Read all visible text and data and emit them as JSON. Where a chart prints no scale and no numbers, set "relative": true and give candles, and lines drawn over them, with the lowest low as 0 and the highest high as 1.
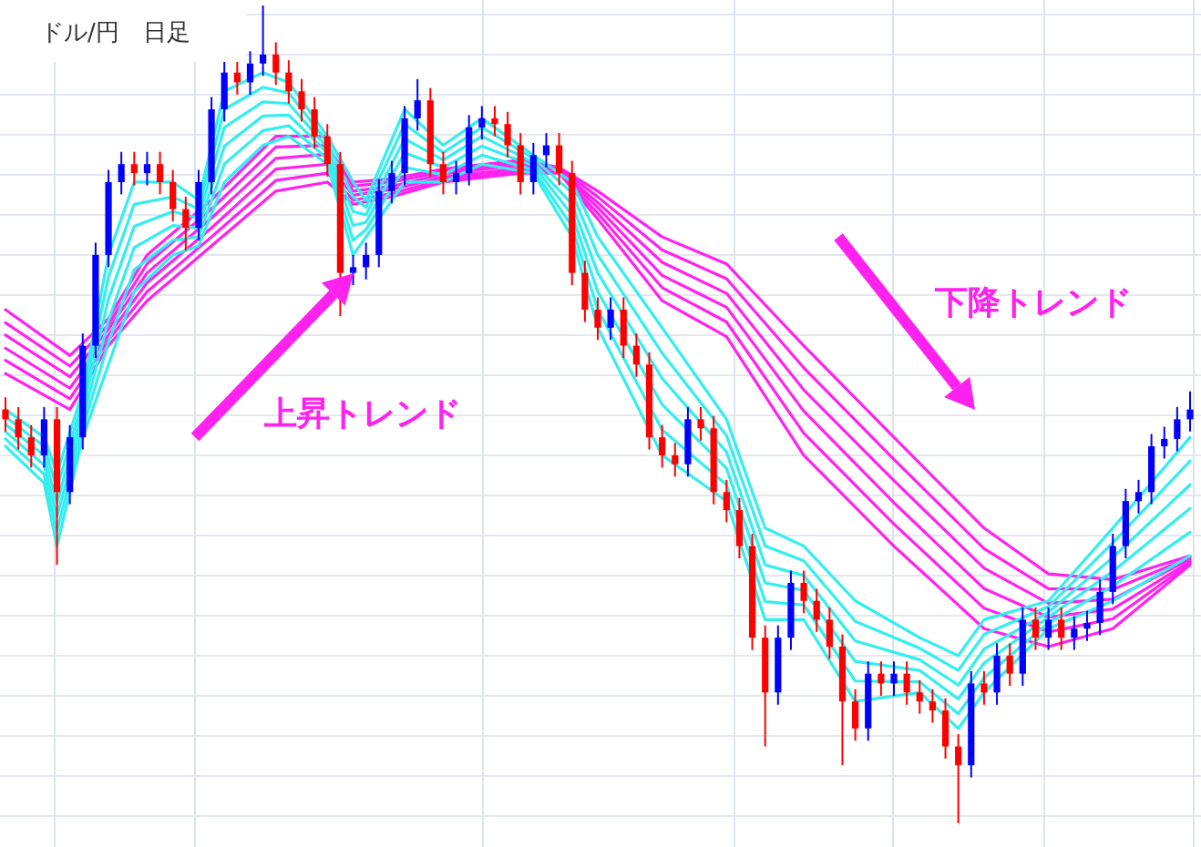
{
  "chart_data": {
    "type": "candlestick",
    "title": "ドル/円　日足",
    "relative": true,
    "grid": true,
    "annotations": [
      "上昇トレンド",
      "下降トレンド"
    ],
    "categories": [
      null,
      null,
      null,
      null,
      null,
      null,
      null,
      null,
      null,
      null,
      null,
      null,
      null,
      null,
      null,
      null,
      null,
      null,
      null,
      null,
      null,
      null,
      null,
      null,
      null,
      null,
      null,
      null,
      null,
      null,
      null,
      null,
      null,
      null,
      null,
      null,
      null,
      null,
      null,
      null,
      null,
      null,
      null,
      null,
      null,
      null,
      null,
      null,
      null,
      null,
      null,
      null,
      null,
      null,
      null,
      null,
      null,
      null,
      null,
      null,
      null,
      null,
      null,
      null,
      null,
      null,
      null,
      null,
      null,
      null,
      null,
      null,
      null,
      null,
      null,
      null,
      null,
      null,
      null,
      null,
      null,
      null,
      null,
      null,
      null,
      null,
      null,
      null,
      null,
      null,
      null,
      null,
      null
    ],
    "ohlc": [
      [
        0.506,
        0.521,
        0.479,
        0.494
      ],
      [
        0.494,
        0.509,
        0.457,
        0.472
      ],
      [
        0.472,
        0.487,
        0.435,
        0.45
      ],
      [
        0.45,
        0.509,
        0.435,
        0.494
      ],
      [
        0.494,
        0.509,
        0.316,
        0.405
      ],
      [
        0.405,
        0.487,
        0.39,
        0.472
      ],
      [
        0.472,
        0.599,
        0.457,
        0.584
      ],
      [
        0.584,
        0.71,
        0.569,
        0.695
      ],
      [
        0.695,
        0.799,
        0.68,
        0.784
      ],
      [
        0.784,
        0.821,
        0.769,
        0.806
      ],
      [
        0.806,
        0.821,
        0.78,
        0.795
      ],
      [
        0.795,
        0.821,
        0.78,
        0.806
      ],
      [
        0.806,
        0.821,
        0.769,
        0.784
      ],
      [
        0.784,
        0.799,
        0.736,
        0.751
      ],
      [
        0.751,
        0.766,
        0.7,
        0.728
      ],
      [
        0.728,
        0.799,
        0.713,
        0.784
      ],
      [
        0.784,
        0.888,
        0.769,
        0.873
      ],
      [
        0.873,
        0.933,
        0.858,
        0.918
      ],
      [
        0.918,
        0.933,
        0.891,
        0.906
      ],
      [
        0.906,
        0.944,
        0.891,
        0.929
      ],
      [
        0.929,
        1.0,
        0.914,
        0.94
      ],
      [
        0.94,
        0.955,
        0.903,
        0.918
      ],
      [
        0.918,
        0.933,
        0.88,
        0.895
      ],
      [
        0.895,
        0.91,
        0.858,
        0.873
      ],
      [
        0.873,
        0.888,
        0.825,
        0.84
      ],
      [
        0.84,
        0.855,
        0.791,
        0.806
      ],
      [
        0.806,
        0.821,
        0.62,
        0.673
      ],
      [
        0.673,
        0.695,
        0.658,
        0.68
      ],
      [
        0.68,
        0.71,
        0.665,
        0.695
      ],
      [
        0.695,
        0.788,
        0.68,
        0.773
      ],
      [
        0.773,
        0.81,
        0.758,
        0.795
      ],
      [
        0.795,
        0.877,
        0.78,
        0.862
      ],
      [
        0.862,
        0.91,
        0.847,
        0.884
      ],
      [
        0.884,
        0.899,
        0.791,
        0.806
      ],
      [
        0.806,
        0.821,
        0.769,
        0.784
      ],
      [
        0.784,
        0.81,
        0.769,
        0.795
      ],
      [
        0.795,
        0.866,
        0.78,
        0.851
      ],
      [
        0.851,
        0.877,
        0.836,
        0.862
      ],
      [
        0.862,
        0.877,
        0.84,
        0.855
      ],
      [
        0.855,
        0.87,
        0.814,
        0.829
      ],
      [
        0.829,
        0.844,
        0.769,
        0.784
      ],
      [
        0.784,
        0.832,
        0.769,
        0.817
      ],
      [
        0.817,
        0.844,
        0.802,
        0.829
      ],
      [
        0.829,
        0.844,
        0.78,
        0.795
      ],
      [
        0.795,
        0.81,
        0.658,
        0.673
      ],
      [
        0.673,
        0.688,
        0.613,
        0.628
      ],
      [
        0.628,
        0.643,
        0.591,
        0.606
      ],
      [
        0.606,
        0.643,
        0.591,
        0.628
      ],
      [
        0.628,
        0.643,
        0.569,
        0.584
      ],
      [
        0.584,
        0.599,
        0.546,
        0.561
      ],
      [
        0.561,
        0.576,
        0.457,
        0.472
      ],
      [
        0.472,
        0.487,
        0.435,
        0.45
      ],
      [
        0.45,
        0.465,
        0.424,
        0.439
      ],
      [
        0.439,
        0.509,
        0.424,
        0.494
      ],
      [
        0.494,
        0.509,
        0.468,
        0.483
      ],
      [
        0.483,
        0.498,
        0.39,
        0.405
      ],
      [
        0.405,
        0.42,
        0.368,
        0.383
      ],
      [
        0.383,
        0.398,
        0.324,
        0.339
      ],
      [
        0.339,
        0.354,
        0.212,
        0.227
      ],
      [
        0.227,
        0.242,
        0.094,
        0.16
      ],
      [
        0.16,
        0.242,
        0.145,
        0.227
      ],
      [
        0.227,
        0.309,
        0.212,
        0.294
      ],
      [
        0.294,
        0.309,
        0.257,
        0.272
      ],
      [
        0.272,
        0.287,
        0.234,
        0.249
      ],
      [
        0.249,
        0.264,
        0.201,
        0.216
      ],
      [
        0.216,
        0.231,
        0.071,
        0.149
      ],
      [
        0.149,
        0.164,
        0.101,
        0.116
      ],
      [
        0.116,
        0.198,
        0.101,
        0.183
      ],
      [
        0.183,
        0.198,
        0.156,
        0.171
      ],
      [
        0.171,
        0.198,
        0.156,
        0.183
      ],
      [
        0.183,
        0.198,
        0.145,
        0.16
      ],
      [
        0.16,
        0.175,
        0.134,
        0.149
      ],
      [
        0.149,
        0.164,
        0.123,
        0.138
      ],
      [
        0.138,
        0.153,
        0.079,
        0.094
      ],
      [
        0.094,
        0.109,
        0.0,
        0.071
      ],
      [
        0.071,
        0.186,
        0.056,
        0.171
      ],
      [
        0.171,
        0.186,
        0.145,
        0.16
      ],
      [
        0.16,
        0.22,
        0.145,
        0.205
      ],
      [
        0.205,
        0.22,
        0.168,
        0.183
      ],
      [
        0.183,
        0.264,
        0.168,
        0.249
      ],
      [
        0.249,
        0.264,
        0.212,
        0.227
      ],
      [
        0.227,
        0.264,
        0.212,
        0.249
      ],
      [
        0.249,
        0.264,
        0.212,
        0.227
      ],
      [
        0.227,
        0.253,
        0.212,
        0.238
      ],
      [
        0.238,
        0.26,
        0.223,
        0.245
      ],
      [
        0.245,
        0.298,
        0.23,
        0.283
      ],
      [
        0.283,
        0.354,
        0.268,
        0.339
      ],
      [
        0.339,
        0.409,
        0.324,
        0.394
      ],
      [
        0.394,
        0.42,
        0.379,
        0.405
      ],
      [
        0.405,
        0.476,
        0.39,
        0.461
      ],
      [
        0.461,
        0.485,
        0.446,
        0.47
      ],
      [
        0.47,
        0.509,
        0.455,
        0.494
      ],
      [
        0.494,
        0.528,
        0.479,
        0.506
      ]
    ],
    "colors": [
      "#ff0000",
      "#ff0000",
      "#ff0000",
      "#0000ff",
      "#ff0000",
      "#0000ff",
      "#0000ff",
      "#0000ff",
      "#0000ff",
      "#0000ff",
      "#ff0000",
      "#0000ff",
      "#ff0000",
      "#ff0000",
      "#ff0000",
      "#0000ff",
      "#0000ff",
      "#0000ff",
      "#ff0000",
      "#0000ff",
      "#0000ff",
      "#ff0000",
      "#ff0000",
      "#ff0000",
      "#ff0000",
      "#ff0000",
      "#ff0000",
      "#0000ff",
      "#0000ff",
      "#0000ff",
      "#0000ff",
      "#0000ff",
      "#0000ff",
      "#ff0000",
      "#ff0000",
      "#0000ff",
      "#0000ff",
      "#0000ff",
      "#ff0000",
      "#ff0000",
      "#ff0000",
      "#0000ff",
      "#0000ff",
      "#ff0000",
      "#ff0000",
      "#ff0000",
      "#ff0000",
      "#0000ff",
      "#ff0000",
      "#ff0000",
      "#ff0000",
      "#ff0000",
      "#ff0000",
      "#0000ff",
      "#ff0000",
      "#ff0000",
      "#ff0000",
      "#ff0000",
      "#ff0000",
      "#ff0000",
      "#0000ff",
      "#0000ff",
      "#ff0000",
      "#ff0000",
      "#ff0000",
      "#ff0000",
      "#ff0000",
      "#0000ff",
      "#ff0000",
      "#0000ff",
      "#ff0000",
      "#ff0000",
      "#ff0000",
      "#ff0000",
      "#ff0000",
      "#0000ff",
      "#ff0000",
      "#0000ff",
      "#ff0000",
      "#0000ff",
      "#ff0000",
      "#0000ff",
      "#ff0000",
      "#0000ff",
      "#0000ff",
      "#0000ff",
      "#0000ff",
      "#0000ff",
      "#0000ff",
      "#0000ff",
      "#0000ff",
      "#0000ff",
      "#0000ff"
    ],
    "series": [
      {
        "type": "line",
        "color": "#ff22ee",
        "values": [
          0.628,
          null,
          null,
          null,
          null,
          0.572,
          null,
          null,
          0.617,
          null,
          null,
          0.695,
          null,
          null,
          null,
          null,
          0.762,
          null,
          null,
          null,
          null,
          0.84,
          null,
          null,
          null,
          0.84,
          null,
          0.784,
          null,
          null,
          0.788,
          null,
          null,
          null,
          0.8,
          null,
          null,
          null,
          null,
          null,
          0.811,
          null,
          null,
          0.802,
          null,
          null,
          0.773,
          null,
          null,
          null,
          null,
          0.717,
          null,
          null,
          null,
          null,
          0.684,
          null,
          null,
          null,
          null,
          null,
          0.584,
          null,
          null,
          null,
          null,
          null,
          null,
          0.472,
          null,
          null,
          null,
          null,
          null,
          null,
          0.361,
          null,
          null,
          null,
          null,
          0.305,
          null,
          null,
          null,
          null,
          0.298,
          null,
          null,
          null,
          null,
          null,
          0.327
        ]
      },
      {
        "type": "line",
        "color": "#ff22ee",
        "values": [
          0.612,
          null,
          null,
          null,
          null,
          0.559,
          null,
          null,
          0.61,
          null,
          null,
          0.684,
          null,
          null,
          null,
          null,
          0.751,
          null,
          null,
          null,
          null,
          0.827,
          null,
          null,
          null,
          0.829,
          null,
          0.779,
          null,
          null,
          0.784,
          null,
          null,
          null,
          0.797,
          null,
          null,
          null,
          null,
          null,
          0.808,
          null,
          null,
          0.801,
          null,
          null,
          0.766,
          null,
          null,
          null,
          null,
          0.701,
          null,
          null,
          null,
          null,
          0.666,
          null,
          null,
          null,
          null,
          null,
          0.557,
          null,
          null,
          null,
          null,
          null,
          null,
          0.445,
          null,
          null,
          null,
          null,
          null,
          null,
          0.336,
          null,
          null,
          null,
          null,
          0.287,
          null,
          null,
          null,
          null,
          0.286,
          null,
          null,
          null,
          null,
          null,
          0.325
        ]
      },
      {
        "type": "line",
        "color": "#ff22ee",
        "values": [
          0.597,
          null,
          null,
          null,
          null,
          0.546,
          null,
          null,
          0.604,
          null,
          null,
          0.673,
          null,
          null,
          null,
          null,
          0.74,
          null,
          null,
          null,
          null,
          0.813,
          null,
          null,
          null,
          0.818,
          null,
          0.773,
          null,
          null,
          0.779,
          null,
          null,
          null,
          0.794,
          null,
          null,
          null,
          null,
          null,
          0.805,
          null,
          null,
          0.799,
          null,
          null,
          0.759,
          null,
          null,
          null,
          null,
          0.686,
          null,
          null,
          null,
          null,
          0.648,
          null,
          null,
          null,
          null,
          null,
          0.53,
          null,
          null,
          null,
          null,
          null,
          null,
          0.419,
          null,
          null,
          null,
          null,
          null,
          null,
          0.312,
          null,
          null,
          null,
          null,
          0.269,
          null,
          null,
          null,
          null,
          0.274,
          null,
          null,
          null,
          null,
          null,
          0.323
        ]
      },
      {
        "type": "line",
        "color": "#ff22ee",
        "values": [
          0.581,
          null,
          null,
          null,
          null,
          0.532,
          null,
          null,
          0.597,
          null,
          null,
          0.661,
          null,
          null,
          null,
          null,
          0.728,
          null,
          null,
          null,
          null,
          0.8,
          null,
          null,
          null,
          0.806,
          null,
          0.768,
          null,
          null,
          0.775,
          null,
          null,
          null,
          0.79,
          null,
          null,
          null,
          null,
          null,
          0.801,
          null,
          null,
          0.798,
          null,
          null,
          0.753,
          null,
          null,
          null,
          null,
          0.67,
          null,
          null,
          null,
          null,
          0.631,
          null,
          null,
          null,
          null,
          null,
          0.504,
          null,
          null,
          null,
          null,
          null,
          null,
          0.392,
          null,
          null,
          null,
          null,
          null,
          null,
          0.287,
          null,
          null,
          null,
          null,
          0.252,
          null,
          null,
          null,
          null,
          0.262,
          null,
          null,
          null,
          null,
          null,
          0.32
        ]
      },
      {
        "type": "line",
        "color": "#ff22ee",
        "values": [
          0.566,
          null,
          null,
          null,
          null,
          0.519,
          null,
          null,
          0.591,
          null,
          null,
          0.65,
          null,
          null,
          null,
          null,
          0.717,
          null,
          null,
          null,
          null,
          0.786,
          null,
          null,
          null,
          0.795,
          null,
          0.762,
          null,
          null,
          0.77,
          null,
          null,
          null,
          0.787,
          null,
          null,
          null,
          null,
          null,
          0.798,
          null,
          null,
          0.796,
          null,
          null,
          0.746,
          null,
          null,
          null,
          null,
          0.655,
          null,
          null,
          null,
          null,
          0.613,
          null,
          null,
          null,
          null,
          null,
          0.477,
          null,
          null,
          null,
          null,
          null,
          null,
          0.366,
          null,
          null,
          null,
          null,
          null,
          null,
          0.263,
          null,
          null,
          null,
          null,
          0.234,
          null,
          null,
          null,
          null,
          0.25,
          null,
          null,
          null,
          null,
          null,
          0.318
        ]
      },
      {
        "type": "line",
        "color": "#ff22ee",
        "values": [
          0.55,
          null,
          null,
          null,
          null,
          0.506,
          null,
          null,
          0.584,
          null,
          null,
          0.639,
          null,
          null,
          null,
          null,
          0.706,
          null,
          null,
          null,
          null,
          0.773,
          null,
          null,
          null,
          0.784,
          null,
          0.757,
          null,
          null,
          0.766,
          null,
          null,
          null,
          0.784,
          null,
          null,
          null,
          null,
          null,
          0.795,
          null,
          null,
          0.795,
          null,
          null,
          0.739,
          null,
          null,
          null,
          null,
          0.639,
          null,
          null,
          null,
          null,
          0.595,
          null,
          null,
          null,
          null,
          null,
          0.45,
          null,
          null,
          null,
          null,
          null,
          null,
          0.339,
          null,
          null,
          null,
          null,
          null,
          null,
          0.238,
          null,
          null,
          null,
          null,
          0.216,
          null,
          null,
          null,
          null,
          0.238,
          null,
          null,
          null,
          null,
          null,
          0.316
        ]
      },
      {
        "type": "line",
        "color": "#33eeee",
        "values": [
          0.506,
          null,
          null,
          0.472,
          0.428,
          null,
          0.528,
          null,
          0.695,
          null,
          0.784,
          null,
          null,
          0.784,
          null,
          0.762,
          null,
          0.895,
          null,
          null,
          0.918,
          null,
          0.906,
          null,
          null,
          0.84,
          null,
          0.784,
          0.762,
          null,
          null,
          0.873,
          null,
          null,
          0.829,
          null,
          null,
          0.862,
          null,
          null,
          null,
          0.817,
          null,
          null,
          0.784,
          null,
          0.717,
          null,
          null,
          null,
          null,
          0.606,
          null,
          null,
          null,
          null,
          0.494,
          null,
          null,
          0.361,
          null,
          null,
          0.339,
          null,
          null,
          null,
          0.272,
          null,
          null,
          null,
          null,
          0.227,
          null,
          null,
          0.205,
          null,
          0.249,
          null,
          null,
          null,
          null,
          0.272,
          null,
          null,
          null,
          null,
          0.361,
          null,
          null,
          null,
          null,
          null,
          0.472
        ]
      },
      {
        "type": "line",
        "color": "#33eeee",
        "values": [
          0.497,
          null,
          null,
          0.461,
          0.41,
          null,
          0.517,
          null,
          0.668,
          null,
          0.757,
          null,
          null,
          0.766,
          null,
          0.751,
          null,
          0.873,
          null,
          null,
          0.9,
          null,
          0.893,
          null,
          null,
          0.833,
          null,
          0.766,
          0.753,
          null,
          null,
          0.855,
          null,
          null,
          0.82,
          null,
          null,
          0.851,
          null,
          null,
          null,
          0.813,
          null,
          null,
          0.771,
          null,
          0.695,
          null,
          null,
          null,
          null,
          0.575,
          null,
          null,
          null,
          null,
          0.474,
          null,
          null,
          0.339,
          null,
          null,
          0.321,
          null,
          null,
          null,
          0.247,
          null,
          null,
          null,
          null,
          0.214,
          null,
          null,
          0.187,
          null,
          0.231,
          null,
          null,
          null,
          null,
          0.265,
          null,
          null,
          null,
          null,
          0.343,
          null,
          null,
          null,
          null,
          null,
          0.443
        ]
      },
      {
        "type": "line",
        "color": "#33eeee",
        "values": [
          0.488,
          null,
          null,
          0.45,
          0.392,
          null,
          0.506,
          null,
          0.641,
          null,
          0.73,
          null,
          null,
          0.748,
          null,
          0.74,
          null,
          0.851,
          null,
          null,
          0.882,
          null,
          0.88,
          null,
          null,
          0.826,
          null,
          0.748,
          0.744,
          null,
          null,
          0.837,
          null,
          null,
          0.811,
          null,
          null,
          0.84,
          null,
          null,
          null,
          0.808,
          null,
          null,
          0.757,
          null,
          0.673,
          null,
          null,
          null,
          null,
          0.544,
          null,
          null,
          null,
          null,
          0.454,
          null,
          null,
          0.316,
          null,
          null,
          0.303,
          null,
          null,
          null,
          0.223,
          null,
          null,
          null,
          null,
          0.2,
          null,
          null,
          0.169,
          null,
          0.213,
          null,
          null,
          null,
          null,
          0.258,
          null,
          null,
          null,
          null,
          0.325,
          null,
          null,
          null,
          null,
          null,
          0.414
        ]
      },
      {
        "type": "line",
        "color": "#33eeee",
        "values": [
          0.479,
          null,
          null,
          0.438,
          0.375,
          null,
          0.494,
          null,
          0.615,
          null,
          0.704,
          null,
          null,
          0.731,
          null,
          0.728,
          null,
          0.828,
          null,
          null,
          0.865,
          null,
          0.866,
          null,
          null,
          0.82,
          null,
          0.731,
          0.735,
          null,
          null,
          0.82,
          null,
          null,
          0.802,
          null,
          null,
          0.828,
          null,
          null,
          null,
          0.804,
          null,
          null,
          0.744,
          null,
          0.65,
          null,
          null,
          null,
          null,
          0.512,
          null,
          null,
          null,
          null,
          0.434,
          null,
          null,
          0.294,
          null,
          null,
          0.285,
          null,
          null,
          null,
          0.198,
          null,
          null,
          null,
          null,
          0.187,
          null,
          null,
          0.152,
          null,
          0.196,
          null,
          null,
          null,
          null,
          0.252,
          null,
          null,
          null,
          null,
          0.308,
          null,
          null,
          null,
          null,
          null,
          0.385
        ]
      },
      {
        "type": "line",
        "color": "#33eeee",
        "values": [
          0.47,
          null,
          null,
          0.427,
          0.357,
          null,
          0.483,
          null,
          0.588,
          null,
          0.677,
          null,
          null,
          0.713,
          null,
          0.717,
          null,
          0.806,
          null,
          null,
          0.847,
          null,
          0.853,
          null,
          null,
          0.813,
          null,
          0.713,
          0.726,
          null,
          null,
          0.802,
          null,
          null,
          0.793,
          null,
          null,
          0.817,
          null,
          null,
          null,
          0.799,
          null,
          null,
          0.73,
          null,
          0.628,
          null,
          null,
          null,
          null,
          0.481,
          null,
          null,
          null,
          null,
          0.414,
          null,
          null,
          0.271,
          null,
          null,
          0.267,
          null,
          null,
          null,
          0.174,
          null,
          null,
          null,
          null,
          0.173,
          null,
          null,
          0.134,
          null,
          0.178,
          null,
          null,
          null,
          null,
          0.245,
          null,
          null,
          null,
          null,
          0.29,
          null,
          null,
          null,
          null,
          null,
          0.356
        ]
      },
      {
        "type": "line",
        "color": "#33eeee",
        "values": [
          0.461,
          null,
          null,
          0.416,
          0.339,
          null,
          0.472,
          null,
          0.561,
          null,
          0.65,
          null,
          null,
          0.695,
          null,
          0.706,
          null,
          0.784,
          null,
          null,
          0.829,
          null,
          0.84,
          null,
          null,
          0.806,
          null,
          0.695,
          0.717,
          null,
          null,
          0.784,
          null,
          null,
          0.784,
          null,
          null,
          0.806,
          null,
          null,
          null,
          0.795,
          null,
          null,
          0.717,
          null,
          0.606,
          null,
          null,
          null,
          null,
          0.45,
          null,
          null,
          null,
          null,
          0.394,
          null,
          null,
          0.249,
          null,
          null,
          0.249,
          null,
          null,
          null,
          0.149,
          null,
          null,
          null,
          null,
          0.16,
          null,
          null,
          0.116,
          null,
          0.16,
          null,
          null,
          null,
          null,
          0.238,
          null,
          null,
          null,
          null,
          0.272,
          null,
          null,
          null,
          null,
          null,
          0.327
        ]
      }
    ]
  }
}
